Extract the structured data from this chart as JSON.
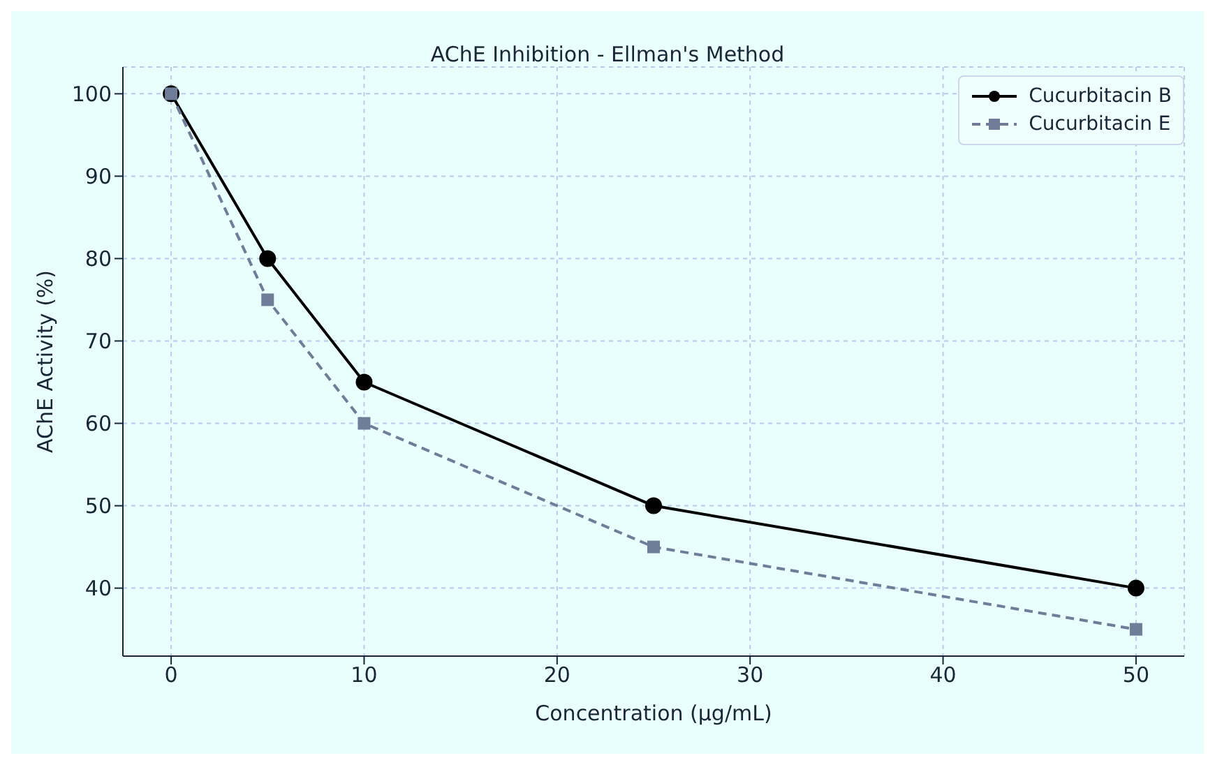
{
  "chart_data": {
    "type": "line",
    "title": "AChE Inhibition - Ellman's Method",
    "xlabel": "Concentration (µg/mL)",
    "ylabel": "AChE Activity (%)",
    "x": [
      0,
      5,
      10,
      25,
      50
    ],
    "series": [
      {
        "name": "Cucurbitacin B",
        "color": "#000000",
        "values": [
          100,
          80,
          65,
          50,
          40
        ],
        "marker": "circle",
        "line_style": "solid"
      },
      {
        "name": "Cucurbitacin E",
        "color": "#6f7d99",
        "values": [
          100,
          75,
          60,
          45,
          35
        ],
        "marker": "square",
        "line_style": "dashed"
      }
    ],
    "xlim": [
      -2.5,
      52.5
    ],
    "xticks": [
      0,
      10,
      20,
      30,
      40,
      50
    ],
    "ylim": [
      31.75,
      103.25
    ],
    "yticks": [
      40,
      50,
      60,
      70,
      80,
      90,
      100
    ],
    "grid": true,
    "legend": "top right"
  }
}
